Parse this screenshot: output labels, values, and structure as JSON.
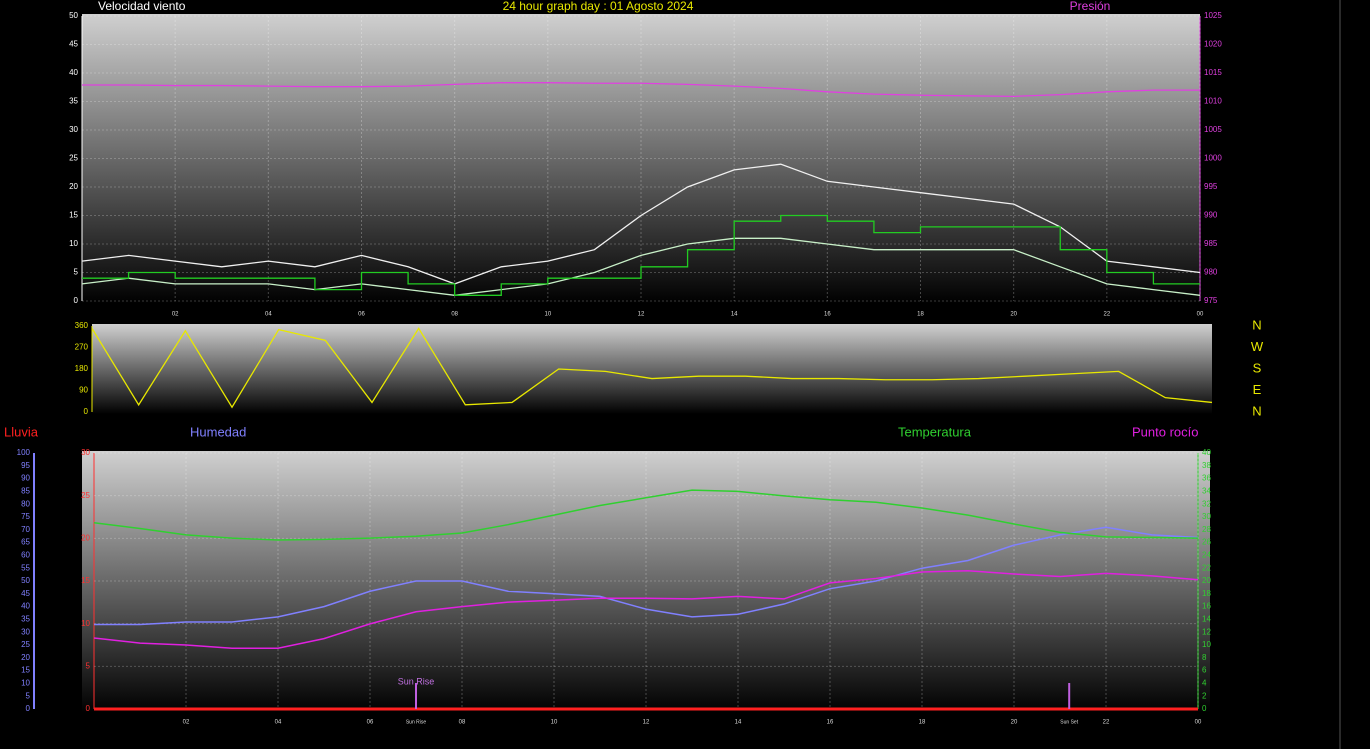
{
  "chart_data": [
    {
      "type": "line",
      "title": "24 hour graph day : 01 Agosto 2024",
      "y_label": "Velocidad viento",
      "y2_label": "Presión",
      "x": [
        0,
        1,
        2,
        3,
        4,
        5,
        6,
        7,
        8,
        9,
        10,
        11,
        12,
        13,
        14,
        15,
        16,
        17,
        18,
        19,
        20,
        21,
        22,
        23,
        24
      ],
      "xlim": [
        0,
        24
      ],
      "xticks": [
        {
          "value": 2,
          "label": "02"
        },
        {
          "value": 4,
          "label": "04"
        },
        {
          "value": 6,
          "label": "06"
        },
        {
          "value": 8,
          "label": "08"
        },
        10,
        12,
        14,
        16,
        18,
        20,
        22,
        {
          "value": 24,
          "label": "00"
        }
      ],
      "ylim": [
        0,
        50
      ],
      "yticks": [
        0,
        5,
        10,
        15,
        20,
        25,
        30,
        35,
        40,
        45,
        50
      ],
      "y2lim": [
        975,
        1025
      ],
      "y2ticks": [
        975,
        980,
        985,
        990,
        995,
        1000,
        1005,
        1010,
        1015,
        1020,
        1025
      ],
      "grid": true,
      "series": [
        {
          "color": "#f0f0f0",
          "values": [
            7,
            8,
            7,
            6,
            7,
            6,
            8,
            6,
            3,
            6,
            7,
            9,
            15,
            20,
            23,
            24,
            21,
            20,
            19,
            18,
            17,
            13,
            7,
            6,
            5
          ]
        },
        {
          "color": "#c8f0c8",
          "values": [
            3,
            4,
            3,
            3,
            3,
            2,
            3,
            2,
            1,
            2,
            3,
            5,
            8,
            10,
            11,
            11,
            10,
            9,
            9,
            9,
            9,
            6,
            3,
            2,
            1
          ]
        },
        {
          "color": "#22cc22",
          "step": true,
          "values": [
            4,
            5,
            4,
            4,
            4,
            2,
            5,
            3,
            1,
            3,
            4,
            4,
            6,
            9,
            14,
            15,
            14,
            12,
            13,
            13,
            13,
            9,
            5,
            3,
            3
          ]
        },
        {
          "color": "#e040e0",
          "axis": "y2",
          "values": [
            1012.9,
            1012.9,
            1012.8,
            1012.8,
            1012.7,
            1012.6,
            1012.6,
            1012.7,
            1013.0,
            1013.3,
            1013.3,
            1013.2,
            1013.2,
            1013.0,
            1012.7,
            1012.3,
            1011.7,
            1011.3,
            1011.1,
            1011.0,
            1010.9,
            1011.2,
            1011.7,
            1012.0,
            1012.0
          ]
        }
      ]
    },
    {
      "type": "line",
      "x": [
        0,
        1,
        2,
        3,
        4,
        5,
        6,
        7,
        8,
        9,
        10,
        11,
        12,
        13,
        14,
        15,
        16,
        17,
        18,
        19,
        20,
        21,
        22,
        23,
        24
      ],
      "xlim": [
        0,
        24
      ],
      "ylim": [
        0,
        360
      ],
      "yticks": [
        0,
        90,
        180,
        270,
        360
      ],
      "direction_labels": [
        "N",
        "W",
        "S",
        "E",
        "N"
      ],
      "series": [
        {
          "color": "#e8e800",
          "values": [
            350,
            30,
            340,
            20,
            345,
            300,
            40,
            350,
            30,
            40,
            180,
            170,
            140,
            150,
            150,
            140,
            140,
            135,
            135,
            140,
            150,
            160,
            170,
            60,
            40
          ]
        }
      ]
    },
    {
      "type": "line",
      "x": [
        0,
        1,
        2,
        3,
        4,
        5,
        6,
        7,
        8,
        9,
        10,
        11,
        12,
        13,
        14,
        15,
        16,
        17,
        18,
        19,
        20,
        21,
        22,
        23,
        24
      ],
      "xlim": [
        0,
        24
      ],
      "xticks": [
        {
          "value": 2,
          "label": "02"
        },
        {
          "value": 4,
          "label": "04"
        },
        {
          "value": 6,
          "label": "06"
        },
        {
          "value": 8,
          "label": "08"
        },
        10,
        12,
        14,
        16,
        18,
        20,
        22,
        {
          "value": 24,
          "label": "00"
        }
      ],
      "ylim": [
        0,
        30
      ],
      "yticks": [
        0,
        5,
        10,
        15,
        20,
        25,
        30
      ],
      "y2lim": [
        0,
        40
      ],
      "y2ticks": [
        0,
        2,
        4,
        6,
        8,
        10,
        12,
        14,
        16,
        18,
        20,
        22,
        24,
        26,
        28,
        30,
        32,
        34,
        36,
        38,
        40
      ],
      "y3lim": [
        0,
        100
      ],
      "y3ticks": [
        0,
        5,
        10,
        15,
        20,
        25,
        30,
        35,
        40,
        45,
        50,
        55,
        60,
        65,
        70,
        75,
        80,
        85,
        90,
        95,
        100
      ],
      "grid": true,
      "series": [
        {
          "name": "Lluvia",
          "color": "#ff2020",
          "values": [
            0,
            0,
            0,
            0,
            0,
            0,
            0,
            0,
            0,
            0,
            0,
            0,
            0,
            0,
            0,
            0,
            0,
            0,
            0,
            0,
            0,
            0,
            0,
            0,
            0
          ]
        },
        {
          "name": "Humedad",
          "axis": "y3",
          "color": "#8080ff",
          "values": [
            33,
            33,
            34,
            34,
            36,
            40,
            46,
            50,
            50,
            46,
            45,
            44,
            39,
            36,
            37,
            41,
            47,
            50,
            55,
            58,
            64,
            68,
            71,
            68,
            67
          ]
        },
        {
          "name": "Temperatura",
          "axis": "y2",
          "color": "#30d030",
          "values": [
            29.1,
            28.2,
            27.2,
            26.7,
            26.4,
            26.5,
            26.7,
            27.0,
            27.5,
            28.8,
            30.3,
            31.8,
            33.0,
            34.2,
            34.0,
            33.3,
            32.7,
            32.3,
            31.4,
            30.3,
            28.9,
            27.6,
            26.9,
            26.8,
            26.7
          ]
        },
        {
          "name": "Punto rocío",
          "axis": "y2",
          "color": "#e020e0",
          "values": [
            11.1,
            10.3,
            10.0,
            9.5,
            9.5,
            11.0,
            13.3,
            15.2,
            16.0,
            16.7,
            17.0,
            17.3,
            17.3,
            17.2,
            17.6,
            17.2,
            19.7,
            20.4,
            21.4,
            21.6,
            21.1,
            20.7,
            21.2,
            20.8,
            20.2
          ]
        }
      ],
      "annotations": [
        {
          "label": "Sun Rise",
          "x": 7.0
        },
        {
          "label": "Sun Set",
          "x": 21.2
        }
      ]
    }
  ]
}
